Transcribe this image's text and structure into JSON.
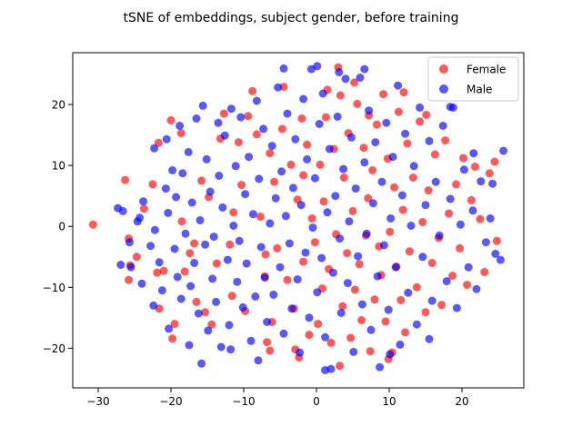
{
  "chart_data": {
    "type": "scatter",
    "title": "tSNE of embeddings, subject gender, before training",
    "xlabel": "",
    "ylabel": "",
    "xlim": [
      -33.5,
      28.5
    ],
    "ylim": [
      -26.5,
      28.5
    ],
    "xticks": [
      -30,
      -20,
      -10,
      0,
      10,
      20
    ],
    "yticks": [
      -20,
      -10,
      0,
      10,
      20
    ],
    "grid": false,
    "legend_position": "top-right",
    "marker_alpha": 0.65,
    "series": [
      {
        "name": "Female",
        "color": "#ff0000",
        "points": [
          [
            -30.7,
            0.3
          ],
          [
            -26.3,
            7.6
          ],
          [
            -25.8,
            -2.0
          ],
          [
            -25.6,
            -6.4
          ],
          [
            -25.8,
            -8.8
          ],
          [
            -24.7,
            -5.0
          ],
          [
            -23.7,
            2.9
          ],
          [
            -22.5,
            6.9
          ],
          [
            -21.7,
            13.7
          ],
          [
            -21.9,
            -7.6
          ],
          [
            -21.6,
            -13.5
          ],
          [
            -21.0,
            -7.3
          ],
          [
            -20.0,
            17.4
          ],
          [
            -19.8,
            -18.4
          ],
          [
            -19.5,
            -16.0
          ],
          [
            -18.6,
            15.3
          ],
          [
            -18.5,
            0.8
          ],
          [
            -18.1,
            -7.4
          ],
          [
            -17.4,
            -4.4
          ],
          [
            -16.8,
            -2.8
          ],
          [
            -16.5,
            -12.4
          ],
          [
            -15.8,
            7.5
          ],
          [
            -15.3,
            -14.1
          ],
          [
            -14.8,
            4.8
          ],
          [
            -14.4,
            -16.1
          ],
          [
            -13.2,
            14.4
          ],
          [
            -12.7,
            18.5
          ],
          [
            -11.9,
            -3.0
          ],
          [
            -11.6,
            -11.4
          ],
          [
            -11.4,
            2.3
          ],
          [
            -10.7,
            13.8
          ],
          [
            -10.3,
            6.8
          ],
          [
            -9.8,
            -13.9
          ],
          [
            -8.8,
            22.2
          ],
          [
            -8.2,
            15.1
          ],
          [
            -7.7,
            1.6
          ],
          [
            -7.1,
            -8.2
          ],
          [
            -6.8,
            -19.0
          ],
          [
            -6.4,
            12.0
          ],
          [
            -6.1,
            -15.7
          ],
          [
            -5.8,
            7.3
          ],
          [
            -5.4,
            -3.6
          ],
          [
            -6.4,
            -20.4
          ],
          [
            -4.7,
            16.0
          ],
          [
            -4.5,
            22.9
          ],
          [
            -4.0,
            -8.8
          ],
          [
            -3.5,
            10.1
          ],
          [
            -3.1,
            -13.5
          ],
          [
            -2.9,
            -20.2
          ],
          [
            -2.6,
            4.4
          ],
          [
            -2.4,
            -21.5
          ],
          [
            -2.0,
            17.7
          ],
          [
            -1.8,
            -5.8
          ],
          [
            -1.3,
            13.4
          ],
          [
            -1.0,
            -17.8
          ],
          [
            -0.6,
            1.3
          ],
          [
            -0.2,
            -2.6
          ],
          [
            0.2,
            -16.0
          ],
          [
            0.5,
            10.1
          ],
          [
            0.8,
            -10.2
          ],
          [
            1.0,
            4.1
          ],
          [
            1.3,
            17.9
          ],
          [
            1.7,
            -7.0
          ],
          [
            2.0,
            -19.1
          ],
          [
            2.4,
            12.7
          ],
          [
            2.7,
            -1.3
          ],
          [
            3.0,
            26.1
          ],
          [
            3.3,
            21.5
          ],
          [
            3.6,
            -13.1
          ],
          [
            3.8,
            8.0
          ],
          [
            4.2,
            -4.4
          ],
          [
            4.4,
            15.3
          ],
          [
            4.7,
            -18.3
          ],
          [
            5.0,
            2.5
          ],
          [
            5.3,
            -10.4
          ],
          [
            5.6,
            20.1
          ],
          [
            5.9,
            -6.2
          ],
          [
            6.2,
            -15.4
          ],
          [
            6.5,
            12.9
          ],
          [
            6.8,
            -1.5
          ],
          [
            7.1,
            4.6
          ],
          [
            7.4,
            -20.5
          ],
          [
            7.7,
            9.2
          ],
          [
            8.0,
            -12.0
          ],
          [
            8.3,
            16.7
          ],
          [
            8.6,
            -3.3
          ],
          [
            8.9,
            -8.0
          ],
          [
            9.2,
            21.7
          ],
          [
            9.5,
            -15.6
          ],
          [
            9.8,
            11.1
          ],
          [
            10.1,
            -0.9
          ],
          [
            10.4,
            -20.7
          ],
          [
            10.7,
            6.4
          ],
          [
            11.0,
            -6.6
          ],
          [
            11.3,
            18.8
          ],
          [
            11.6,
            -12.1
          ],
          [
            11.9,
            2.7
          ],
          [
            12.2,
            -17.4
          ],
          [
            12.5,
            13.6
          ],
          [
            12.8,
            -4.1
          ],
          [
            13.3,
            8.0
          ],
          [
            13.8,
            -10.0
          ],
          [
            14.2,
            17.2
          ],
          [
            14.6,
            0.7
          ],
          [
            15.0,
            -14.1
          ],
          [
            15.4,
            5.9
          ],
          [
            15.9,
            -6.0
          ],
          [
            16.3,
            11.8
          ],
          [
            16.8,
            -1.9
          ],
          [
            17.2,
            -12.9
          ],
          [
            17.7,
            14.1
          ],
          [
            18.2,
            2.1
          ],
          [
            18.7,
            -8.1
          ],
          [
            19.2,
            6.9
          ],
          [
            19.7,
            -3.6
          ],
          [
            20.2,
            11.2
          ],
          [
            20.7,
            -9.6
          ],
          [
            21.3,
            4.3
          ],
          [
            21.8,
            9.8
          ],
          [
            22.5,
            1.2
          ],
          [
            23.1,
            -7.5
          ],
          [
            23.8,
            8.7
          ],
          [
            24.5,
            10.6
          ],
          [
            24.8,
            -2.4
          ],
          [
            5.2,
            23.6
          ],
          [
            -9.4,
            18.1
          ],
          [
            -13.7,
            -6.1
          ],
          [
            1.5,
            22.4
          ],
          [
            7.2,
            18.2
          ],
          [
            12.0,
            22.0
          ],
          [
            -1.8,
            8.4
          ],
          [
            -7.0,
            -4.6
          ],
          [
            3.2,
            -22.9
          ],
          [
            9.9,
            -21.8
          ],
          [
            15.1,
            18.3
          ]
        ]
      },
      {
        "name": "Male",
        "color": "#0000ff",
        "points": [
          [
            -27.3,
            3.0
          ],
          [
            -26.6,
            2.5
          ],
          [
            -25.7,
            -2.6
          ],
          [
            -25.5,
            -6.7
          ],
          [
            -24.6,
            0.8
          ],
          [
            -24.3,
            1.4
          ],
          [
            -23.8,
            4.1
          ],
          [
            -22.8,
            -3.2
          ],
          [
            -22.4,
            -13.0
          ],
          [
            -22.2,
            -0.6
          ],
          [
            -21.6,
            -5.9
          ],
          [
            -21.2,
            -10.5
          ],
          [
            -20.7,
            6.2
          ],
          [
            -20.6,
            14.3
          ],
          [
            -20.4,
            2.2
          ],
          [
            -20.3,
            -16.8
          ],
          [
            -19.8,
            9.2
          ],
          [
            -19.5,
            -3.7
          ],
          [
            -19.3,
            4.8
          ],
          [
            -19.1,
            -8.3
          ],
          [
            -18.8,
            16.5
          ],
          [
            -18.6,
            -11.9
          ],
          [
            -18.4,
            8.7
          ],
          [
            -18.0,
            -1.2
          ],
          [
            -17.6,
            12.2
          ],
          [
            -17.3,
            -9.8
          ],
          [
            -17.1,
            3.9
          ],
          [
            -16.8,
            -6.0
          ],
          [
            -16.5,
            17.7
          ],
          [
            -16.2,
            -14.3
          ],
          [
            -16.0,
            1.0
          ],
          [
            -15.8,
            -22.5
          ],
          [
            -15.6,
            19.8
          ],
          [
            -15.3,
            -3.0
          ],
          [
            -15.1,
            11.0
          ],
          [
            -14.9,
            -17.1
          ],
          [
            -14.6,
            5.7
          ],
          [
            -14.3,
            -8.6
          ],
          [
            -14.1,
            -1.7
          ],
          [
            -13.8,
            -12.4
          ],
          [
            -13.4,
            8.3
          ],
          [
            -13.1,
            -19.8
          ],
          [
            -12.9,
            3.1
          ],
          [
            -12.6,
            14.9
          ],
          [
            -12.2,
            -5.5
          ],
          [
            -12.0,
            -16.2
          ],
          [
            -11.7,
            19.3
          ],
          [
            -11.4,
            0.1
          ],
          [
            -11.1,
            9.9
          ],
          [
            -10.9,
            -9.1
          ],
          [
            -10.6,
            -2.4
          ],
          [
            -10.4,
            17.9
          ],
          [
            -10.1,
            -13.3
          ],
          [
            -9.8,
            5.3
          ],
          [
            -9.6,
            -6.1
          ],
          [
            -9.3,
            11.4
          ],
          [
            -9.0,
            -18.8
          ],
          [
            -8.7,
            2.0
          ],
          [
            -8.4,
            -11.5
          ],
          [
            -8.2,
            20.6
          ],
          [
            -7.9,
            7.8
          ],
          [
            -7.6,
            -3.4
          ],
          [
            -7.3,
            16.0
          ],
          [
            -7.1,
            -8.4
          ],
          [
            -6.8,
            -15.7
          ],
          [
            -6.4,
            0.5
          ],
          [
            -6.1,
            13.2
          ],
          [
            -5.9,
            -11.2
          ],
          [
            -5.6,
            4.6
          ],
          [
            -5.3,
            22.8
          ],
          [
            -5.0,
            -6.7
          ],
          [
            -4.8,
            9.0
          ],
          [
            -4.5,
            -17.6
          ],
          [
            -4.2,
            1.7
          ],
          [
            -4.0,
            18.5
          ],
          [
            -3.7,
            -2.8
          ],
          [
            -3.4,
            -13.5
          ],
          [
            -3.2,
            6.3
          ],
          [
            -2.9,
            14.3
          ],
          [
            -2.6,
            -8.7
          ],
          [
            -2.3,
            -20.7
          ],
          [
            -2.1,
            3.5
          ],
          [
            -1.8,
            20.9
          ],
          [
            -1.5,
            -4.3
          ],
          [
            -1.3,
            11.0
          ],
          [
            -1.0,
            -15.0
          ],
          [
            -0.7,
            25.8
          ],
          [
            -0.5,
            -0.2
          ],
          [
            -0.2,
            7.9
          ],
          [
            0.1,
            -10.8
          ],
          [
            0.4,
            16.8
          ],
          [
            0.7,
            -5.2
          ],
          [
            0.9,
            21.8
          ],
          [
            1.2,
            -18.2
          ],
          [
            1.5,
            2.3
          ],
          [
            1.8,
            12.7
          ],
          [
            2.0,
            -23.4
          ],
          [
            2.3,
            -7.6
          ],
          [
            2.6,
            5.0
          ],
          [
            2.9,
            18.0
          ],
          [
            3.2,
            -2.0
          ],
          [
            3.4,
            -14.2
          ],
          [
            3.7,
            9.4
          ],
          [
            4.0,
            24.2
          ],
          [
            4.3,
            -9.3
          ],
          [
            4.5,
            0.8
          ],
          [
            4.8,
            14.6
          ],
          [
            5.1,
            -20.6
          ],
          [
            5.4,
            6.2
          ],
          [
            5.7,
            -4.9
          ],
          [
            6.0,
            24.4
          ],
          [
            6.3,
            -12.8
          ],
          [
            6.6,
            10.5
          ],
          [
            6.9,
            -1.2
          ],
          [
            7.2,
            19.0
          ],
          [
            7.5,
            -17.0
          ],
          [
            7.8,
            3.8
          ],
          [
            8.1,
            13.8
          ],
          [
            8.4,
            -8.2
          ],
          [
            8.7,
            -23.1
          ],
          [
            9.0,
            7.3
          ],
          [
            9.3,
            -3.1
          ],
          [
            9.6,
            17.0
          ],
          [
            9.9,
            -13.7
          ],
          [
            10.2,
            1.3
          ],
          [
            10.5,
            11.4
          ],
          [
            10.9,
            -6.7
          ],
          [
            11.2,
            23.1
          ],
          [
            11.5,
            -19.4
          ],
          [
            11.8,
            5.1
          ],
          [
            12.2,
            15.2
          ],
          [
            12.6,
            -10.9
          ],
          [
            13.0,
            0.1
          ],
          [
            13.4,
            9.9
          ],
          [
            13.8,
            -16.1
          ],
          [
            14.2,
            19.5
          ],
          [
            14.6,
            -5.0
          ],
          [
            15.0,
            3.5
          ],
          [
            15.5,
            14.0
          ],
          [
            15.9,
            -12.2
          ],
          [
            16.4,
            7.3
          ],
          [
            16.9,
            -1.5
          ],
          [
            17.4,
            16.5
          ],
          [
            17.9,
            -9.0
          ],
          [
            18.4,
            4.5
          ],
          [
            18.8,
            19.5
          ],
          [
            19.3,
            -13.4
          ],
          [
            19.8,
            0.3
          ],
          [
            20.3,
            9.3
          ],
          [
            20.9,
            -6.7
          ],
          [
            21.5,
            2.6
          ],
          [
            22.0,
            -10.3
          ],
          [
            22.6,
            7.4
          ],
          [
            23.3,
            -2.6
          ],
          [
            23.9,
            1.3
          ],
          [
            24.6,
            -4.5
          ],
          [
            25.3,
            -5.5
          ],
          [
            25.7,
            12.4
          ],
          [
            -26.9,
            -6.3
          ],
          [
            -11.8,
            -20.2
          ],
          [
            -4.5,
            25.9
          ],
          [
            0.1,
            26.3
          ],
          [
            3.1,
            25.3
          ],
          [
            6.6,
            25.8
          ],
          [
            -22.3,
            12.8
          ],
          [
            24.2,
            7.0
          ],
          [
            15.5,
            -18.5
          ],
          [
            -8.0,
            -22.0
          ],
          [
            1.2,
            -23.6
          ],
          [
            10.1,
            -21.0
          ],
          [
            18.4,
            19.6
          ],
          [
            -13.5,
            17.0
          ],
          [
            -17.5,
            -19.5
          ],
          [
            21.6,
            12.0
          ],
          [
            -24.0,
            -9.4
          ]
        ]
      }
    ]
  }
}
